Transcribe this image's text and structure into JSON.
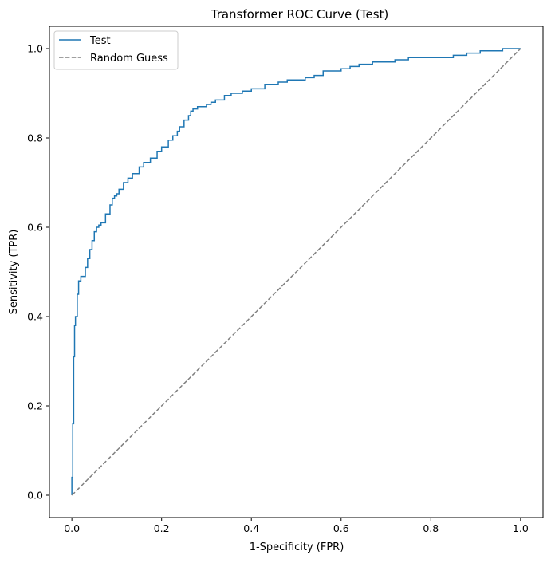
{
  "chart_data": {
    "type": "line",
    "title": "Transformer ROC Curve (Test)",
    "xlabel": "1-Specificity (FPR)",
    "ylabel": "Sensitivity (TPR)",
    "xlim": [
      -0.05,
      1.05
    ],
    "ylim": [
      -0.05,
      1.05
    ],
    "xticks": [
      0.0,
      0.2,
      0.4,
      0.6,
      0.8,
      1.0
    ],
    "yticks": [
      0.0,
      0.2,
      0.4,
      0.6,
      0.8,
      1.0
    ],
    "xtick_labels": [
      "0.0",
      "0.2",
      "0.4",
      "0.6",
      "0.8",
      "1.0"
    ],
    "ytick_labels": [
      "0.0",
      "0.2",
      "0.4",
      "0.6",
      "0.8",
      "1.0"
    ],
    "grid": false,
    "legend_position": "upper-left",
    "series": [
      {
        "name": "Test",
        "color": "#1f77b4",
        "style": "solid",
        "x": [
          0.0,
          0.0,
          0.002,
          0.002,
          0.004,
          0.004,
          0.006,
          0.006,
          0.008,
          0.008,
          0.012,
          0.012,
          0.015,
          0.015,
          0.02,
          0.02,
          0.03,
          0.03,
          0.035,
          0.035,
          0.04,
          0.04,
          0.045,
          0.045,
          0.05,
          0.05,
          0.055,
          0.055,
          0.06,
          0.06,
          0.065,
          0.065,
          0.075,
          0.075,
          0.085,
          0.085,
          0.09,
          0.09,
          0.095,
          0.095,
          0.1,
          0.1,
          0.105,
          0.105,
          0.115,
          0.115,
          0.125,
          0.125,
          0.135,
          0.135,
          0.15,
          0.15,
          0.16,
          0.16,
          0.175,
          0.175,
          0.19,
          0.19,
          0.2,
          0.2,
          0.215,
          0.215,
          0.225,
          0.225,
          0.235,
          0.235,
          0.24,
          0.24,
          0.25,
          0.25,
          0.26,
          0.26,
          0.265,
          0.265,
          0.27,
          0.27,
          0.28,
          0.28,
          0.3,
          0.3,
          0.31,
          0.31,
          0.32,
          0.32,
          0.34,
          0.34,
          0.355,
          0.355,
          0.38,
          0.38,
          0.4,
          0.4,
          0.43,
          0.43,
          0.46,
          0.46,
          0.48,
          0.48,
          0.52,
          0.52,
          0.54,
          0.54,
          0.56,
          0.56,
          0.6,
          0.6,
          0.62,
          0.62,
          0.64,
          0.64,
          0.67,
          0.67,
          0.72,
          0.72,
          0.75,
          0.75,
          0.85,
          0.85,
          0.88,
          0.88,
          0.91,
          0.91,
          0.96,
          0.96,
          1.0
        ],
        "y": [
          0.0,
          0.04,
          0.04,
          0.16,
          0.16,
          0.31,
          0.31,
          0.38,
          0.38,
          0.4,
          0.4,
          0.45,
          0.45,
          0.48,
          0.48,
          0.49,
          0.49,
          0.51,
          0.51,
          0.53,
          0.53,
          0.55,
          0.55,
          0.57,
          0.57,
          0.59,
          0.59,
          0.6,
          0.6,
          0.605,
          0.605,
          0.61,
          0.61,
          0.63,
          0.63,
          0.65,
          0.65,
          0.665,
          0.665,
          0.67,
          0.67,
          0.675,
          0.675,
          0.685,
          0.685,
          0.7,
          0.7,
          0.71,
          0.71,
          0.72,
          0.72,
          0.735,
          0.735,
          0.745,
          0.745,
          0.755,
          0.755,
          0.77,
          0.77,
          0.78,
          0.78,
          0.795,
          0.795,
          0.805,
          0.805,
          0.815,
          0.815,
          0.825,
          0.825,
          0.84,
          0.84,
          0.85,
          0.85,
          0.86,
          0.86,
          0.865,
          0.865,
          0.87,
          0.87,
          0.875,
          0.875,
          0.88,
          0.88,
          0.885,
          0.885,
          0.895,
          0.895,
          0.9,
          0.9,
          0.905,
          0.905,
          0.91,
          0.91,
          0.92,
          0.92,
          0.925,
          0.925,
          0.93,
          0.93,
          0.935,
          0.935,
          0.94,
          0.94,
          0.95,
          0.95,
          0.955,
          0.955,
          0.96,
          0.96,
          0.965,
          0.965,
          0.97,
          0.97,
          0.975,
          0.975,
          0.98,
          0.98,
          0.985,
          0.985,
          0.99,
          0.99,
          0.995,
          0.995,
          1.0,
          1.0
        ]
      },
      {
        "name": "Random Guess",
        "color": "#808080",
        "style": "dashed",
        "x": [
          0.0,
          1.0
        ],
        "y": [
          0.0,
          1.0
        ]
      }
    ]
  }
}
